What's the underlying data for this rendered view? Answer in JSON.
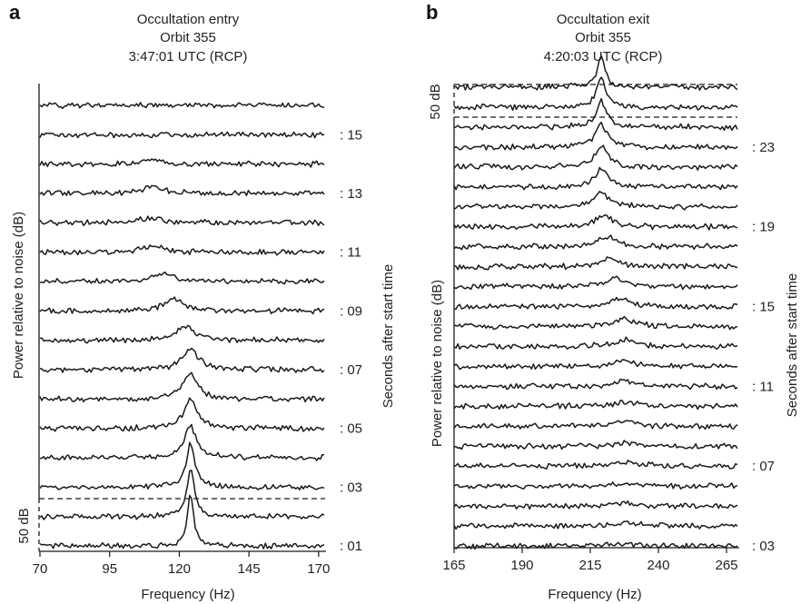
{
  "chart_data": [
    {
      "type": "line",
      "panel_letter": "a",
      "title_lines": [
        "Occultation entry",
        "Orbit 355",
        "3:47:01 UTC (RCP)"
      ],
      "xlabel": "Frequency (Hz)",
      "ylabel": "Power relative to noise (dB)",
      "ylabel2": "Seconds after start time",
      "scale_bar_label": "50 dB",
      "xlim": [
        70,
        172
      ],
      "xticks": [
        70,
        95,
        120,
        145,
        170
      ],
      "xtick_labels": [
        "70",
        "95",
        "120",
        "145",
        "170"
      ],
      "seconds_labels": [
        {
          "second": 1,
          "text": ": 01"
        },
        {
          "second": 3,
          "text": ": 03"
        },
        {
          "second": 5,
          "text": ": 05"
        },
        {
          "second": 7,
          "text": ": 07"
        },
        {
          "second": 9,
          "text": ": 09"
        },
        {
          "second": 11,
          "text": ": 11"
        },
        {
          "second": 13,
          "text": ": 13"
        },
        {
          "second": 15,
          "text": ": 15"
        }
      ],
      "traces": [
        {
          "second": 1,
          "peak_freq_hz": 124,
          "peak_db": 50
        },
        {
          "second": 2,
          "peak_freq_hz": 124,
          "peak_db": 45
        },
        {
          "second": 3,
          "peak_freq_hz": 124,
          "peak_db": 42
        },
        {
          "second": 4,
          "peak_freq_hz": 124,
          "peak_db": 30
        },
        {
          "second": 5,
          "peak_freq_hz": 124,
          "peak_db": 28
        },
        {
          "second": 6,
          "peak_freq_hz": 124,
          "peak_db": 25
        },
        {
          "second": 7,
          "peak_freq_hz": 124,
          "peak_db": 20
        },
        {
          "second": 8,
          "peak_freq_hz": 122,
          "peak_db": 14
        },
        {
          "second": 9,
          "peak_freq_hz": 118,
          "peak_db": 12
        },
        {
          "second": 10,
          "peak_freq_hz": 114,
          "peak_db": 8
        },
        {
          "second": 11,
          "peak_freq_hz": 110,
          "peak_db": 6
        },
        {
          "second": 12,
          "peak_freq_hz": 110,
          "peak_db": 5
        },
        {
          "second": 13,
          "peak_freq_hz": 110,
          "peak_db": 7
        },
        {
          "second": 14,
          "peak_freq_hz": 110,
          "peak_db": 4
        },
        {
          "second": 15,
          "peak_freq_hz": 110,
          "peak_db": 0
        },
        {
          "second": 16,
          "peak_freq_hz": 110,
          "peak_db": 0
        }
      ]
    },
    {
      "type": "line",
      "panel_letter": "b",
      "title_lines": [
        "Occultation exit",
        "Orbit 355",
        "4:20:03 UTC (RCP)"
      ],
      "xlabel": "Frequency (Hz)",
      "ylabel": "Power relative to noise (dB)",
      "ylabel2": "Seconds after start time",
      "scale_bar_label": "50 dB",
      "xlim": [
        165,
        269
      ],
      "xticks": [
        165,
        190,
        215,
        240,
        265
      ],
      "xtick_labels": [
        "165",
        "190",
        "215",
        "240",
        "265"
      ],
      "seconds_labels": [
        {
          "second": 3,
          "text": ": 03"
        },
        {
          "second": 7,
          "text": ": 07"
        },
        {
          "second": 11,
          "text": ": 11"
        },
        {
          "second": 15,
          "text": ": 15"
        },
        {
          "second": 19,
          "text": ": 19"
        },
        {
          "second": 23,
          "text": ": 23"
        }
      ],
      "traces": [
        {
          "second": 3,
          "peak_freq_hz": 228,
          "peak_db": 3
        },
        {
          "second": 4,
          "peak_freq_hz": 228,
          "peak_db": 4
        },
        {
          "second": 5,
          "peak_freq_hz": 228,
          "peak_db": 5
        },
        {
          "second": 6,
          "peak_freq_hz": 228,
          "peak_db": 4
        },
        {
          "second": 7,
          "peak_freq_hz": 228,
          "peak_db": 6
        },
        {
          "second": 8,
          "peak_freq_hz": 228,
          "peak_db": 5
        },
        {
          "second": 9,
          "peak_freq_hz": 228,
          "peak_db": 6
        },
        {
          "second": 10,
          "peak_freq_hz": 228,
          "peak_db": 7
        },
        {
          "second": 11,
          "peak_freq_hz": 228,
          "peak_db": 8
        },
        {
          "second": 12,
          "peak_freq_hz": 228,
          "peak_db": 9
        },
        {
          "second": 13,
          "peak_freq_hz": 228,
          "peak_db": 10
        },
        {
          "second": 14,
          "peak_freq_hz": 228,
          "peak_db": 10
        },
        {
          "second": 15,
          "peak_freq_hz": 226,
          "peak_db": 11
        },
        {
          "second": 16,
          "peak_freq_hz": 224,
          "peak_db": 12
        },
        {
          "second": 17,
          "peak_freq_hz": 222,
          "peak_db": 13
        },
        {
          "second": 18,
          "peak_freq_hz": 221,
          "peak_db": 14
        },
        {
          "second": 19,
          "peak_freq_hz": 220,
          "peak_db": 16
        },
        {
          "second": 20,
          "peak_freq_hz": 219,
          "peak_db": 20
        },
        {
          "second": 21,
          "peak_freq_hz": 219,
          "peak_db": 24
        },
        {
          "second": 22,
          "peak_freq_hz": 219,
          "peak_db": 28
        },
        {
          "second": 23,
          "peak_freq_hz": 219,
          "peak_db": 32
        },
        {
          "second": 24,
          "peak_freq_hz": 219,
          "peak_db": 36
        },
        {
          "second": 25,
          "peak_freq_hz": 219,
          "peak_db": 40
        },
        {
          "second": 26,
          "peak_freq_hz": 219,
          "peak_db": 45
        }
      ]
    }
  ]
}
